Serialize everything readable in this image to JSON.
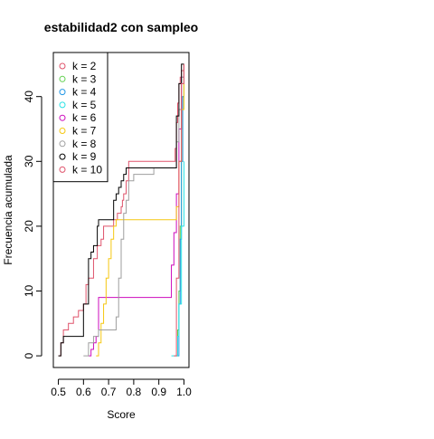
{
  "chart_data": {
    "type": "line",
    "title": "estabilidad2 con sampleo",
    "xlabel": "Score",
    "ylabel": "Frecuencia acumulada",
    "xlim": [
      0.48,
      1.02
    ],
    "ylim": [
      -1.8,
      46.8
    ],
    "x_ticks": [
      0.5,
      0.6,
      0.7,
      0.8,
      0.9,
      1.0
    ],
    "x_tick_labels": [
      "0.5",
      "0.6",
      "0.7",
      "0.8",
      "0.9",
      "1.0"
    ],
    "y_ticks": [
      0,
      10,
      20,
      30,
      40
    ],
    "y_tick_labels": [
      "0",
      "10",
      "20",
      "30",
      "40"
    ],
    "grid": false,
    "legend_position": "top-left",
    "series": [
      {
        "name": "k = 2",
        "color": "#DF536B",
        "x": [
          0.5,
          0.51,
          0.52,
          0.54,
          0.56,
          0.58,
          0.6,
          0.61,
          0.62,
          0.64,
          0.655,
          0.67,
          0.68,
          0.72,
          0.735,
          0.75,
          0.755,
          0.76,
          0.77,
          0.78,
          0.85,
          0.96,
          0.965,
          0.97,
          0.975,
          0.98,
          0.985,
          0.99,
          1.0
        ],
        "y": [
          0,
          2,
          4,
          5,
          6,
          7,
          8,
          11,
          12,
          15,
          17,
          18,
          20,
          21,
          22,
          23,
          24,
          25,
          27,
          30,
          30,
          30,
          32,
          36,
          39,
          42,
          43,
          44,
          45
        ]
      },
      {
        "name": "k = 3",
        "color": "#61D04F",
        "x": [
          0.97,
          0.975,
          0.98,
          0.985,
          0.99,
          0.995,
          1.0
        ],
        "y": [
          0,
          4,
          10,
          20,
          30,
          40,
          45
        ]
      },
      {
        "name": "k = 4",
        "color": "#2297E6",
        "x": [
          0.975,
          0.98,
          0.985,
          0.99,
          0.995,
          1.0
        ],
        "y": [
          0,
          8,
          18,
          30,
          40,
          45
        ]
      },
      {
        "name": "k = 5",
        "color": "#28E2E5",
        "x": [
          0.95,
          0.96,
          0.97,
          0.975,
          0.98,
          0.99,
          1.0
        ],
        "y": [
          0,
          0,
          0,
          3,
          8,
          20,
          30
        ]
      },
      {
        "name": "k = 6",
        "color": "#CD0BBC",
        "x": [
          0.62,
          0.63,
          0.64,
          0.65,
          0.66,
          0.85,
          0.95,
          0.96,
          0.97,
          0.98,
          0.99,
          1.0
        ],
        "y": [
          0,
          1,
          2,
          3,
          9,
          9,
          14,
          19,
          25,
          35,
          43,
          45
        ]
      },
      {
        "name": "k = 7",
        "color": "#F5C710",
        "x": [
          0.65,
          0.66,
          0.67,
          0.68,
          0.69,
          0.7,
          0.71,
          0.72,
          0.73,
          0.74,
          0.96,
          0.97,
          0.98,
          0.99,
          1.0
        ],
        "y": [
          0,
          2,
          5,
          8,
          12,
          15,
          18,
          20,
          21,
          21,
          21,
          23,
          30,
          38,
          45
        ]
      },
      {
        "name": "k = 8",
        "color": "#9E9E9E",
        "x": [
          0.6,
          0.62,
          0.64,
          0.66,
          0.7,
          0.73,
          0.74,
          0.75,
          0.76,
          0.77,
          0.78,
          0.8,
          0.84,
          0.88,
          0.96,
          0.97,
          0.98,
          0.99,
          1.0
        ],
        "y": [
          0,
          2,
          3,
          4,
          4,
          6,
          12,
          18,
          22,
          24,
          27,
          28,
          28,
          29,
          29,
          33,
          38,
          43,
          45
        ]
      },
      {
        "name": "k = 9",
        "color": "#000000",
        "x": [
          0.5,
          0.51,
          0.52,
          0.54,
          0.57,
          0.6,
          0.62,
          0.63,
          0.64,
          0.655,
          0.66,
          0.7,
          0.72,
          0.73,
          0.74,
          0.75,
          0.76,
          0.77,
          0.78,
          0.85,
          0.96,
          0.97,
          0.98,
          0.99,
          1.0
        ],
        "y": [
          0,
          2,
          3,
          3,
          3,
          8,
          15,
          16,
          17,
          20,
          21,
          21,
          24,
          25,
          26,
          27,
          28,
          29,
          29,
          29,
          29,
          37,
          42,
          45,
          45
        ]
      },
      {
        "name": "k = 10",
        "color": "#DF536B",
        "x": [
          0.96,
          0.97,
          0.98,
          0.99,
          1.0
        ],
        "y": [
          0,
          12,
          30,
          42,
          45
        ]
      }
    ]
  }
}
